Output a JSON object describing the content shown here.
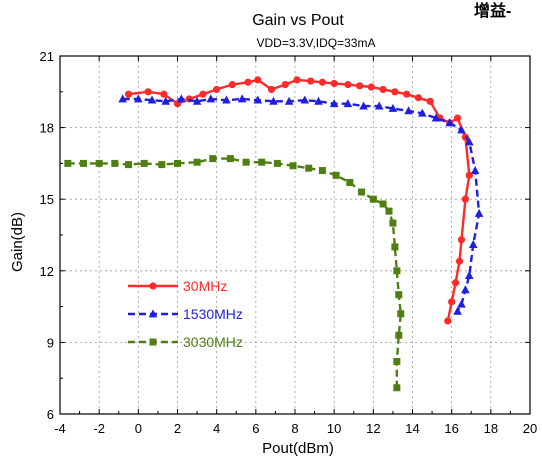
{
  "corner_text": "增益-",
  "chart_data": {
    "type": "line",
    "title": "Gain vs Pout",
    "subtitle": "VDD=3.3V,IDQ=33mA",
    "xlabel": "Pout(dBm)",
    "ylabel": "Gain(dB)",
    "xlim": [
      -4,
      20
    ],
    "ylim": [
      6,
      21
    ],
    "xticks": [
      -4,
      -2,
      0,
      2,
      4,
      6,
      8,
      10,
      12,
      14,
      16,
      18,
      20
    ],
    "yticks": [
      6,
      9,
      12,
      15,
      18,
      21
    ],
    "grid": true,
    "legend_position": "lower-left",
    "series": [
      {
        "name": "30MHz",
        "color": "#ff2a2a",
        "marker": "circle",
        "x": [
          -0.5,
          0.5,
          1.3,
          2.0,
          2.6,
          3.3,
          4.0,
          4.8,
          5.6,
          6.1,
          6.8,
          7.5,
          8.1,
          8.8,
          9.4,
          10.0,
          10.7,
          11.3,
          11.9,
          12.5,
          13.1,
          13.7,
          14.3,
          14.9,
          15.4,
          15.9,
          16.3,
          16.7,
          16.9,
          16.7,
          16.5,
          16.4,
          16.2,
          16.0,
          15.8
        ],
        "y": [
          19.4,
          19.5,
          19.4,
          19.0,
          19.2,
          19.4,
          19.6,
          19.8,
          19.9,
          20.0,
          19.6,
          19.8,
          20.0,
          19.95,
          19.9,
          19.85,
          19.8,
          19.75,
          19.7,
          19.6,
          19.5,
          19.4,
          19.25,
          19.1,
          18.4,
          18.2,
          18.4,
          17.6,
          16.0,
          15.0,
          13.3,
          12.4,
          11.5,
          10.7,
          9.9
        ]
      },
      {
        "name": "1530MHz",
        "color": "#1f1fe0",
        "marker": "triangle",
        "x": [
          -0.8,
          0.0,
          0.7,
          1.4,
          2.2,
          3.0,
          3.7,
          4.5,
          5.3,
          6.1,
          6.9,
          7.7,
          8.5,
          9.2,
          10.0,
          10.7,
          11.5,
          12.3,
          13.0,
          13.8,
          14.5,
          15.2,
          15.9,
          16.5,
          16.9,
          17.2,
          17.4,
          17.1,
          16.9,
          16.7,
          16.5,
          16.3
        ],
        "y": [
          19.2,
          19.2,
          19.15,
          19.1,
          19.2,
          19.1,
          19.2,
          19.15,
          19.2,
          19.15,
          19.1,
          19.1,
          19.15,
          19.1,
          19.0,
          19.0,
          18.9,
          18.9,
          18.8,
          18.7,
          18.6,
          18.4,
          18.2,
          17.9,
          17.4,
          16.2,
          14.4,
          13.1,
          11.8,
          11.2,
          10.6,
          10.3
        ]
      },
      {
        "name": "3030MHz",
        "color": "#4f7f12",
        "marker": "square",
        "x": [
          -3.6,
          -2.8,
          -2.0,
          -1.2,
          -0.5,
          0.3,
          1.2,
          2.0,
          3.0,
          3.8,
          4.7,
          5.5,
          6.3,
          7.1,
          7.9,
          8.7,
          9.4,
          10.1,
          10.8,
          11.4,
          12.0,
          12.5,
          12.8,
          13.0,
          13.1,
          13.2,
          13.3,
          13.4,
          13.3,
          13.2,
          13.2
        ],
        "y": [
          16.5,
          16.5,
          16.5,
          16.5,
          16.45,
          16.5,
          16.45,
          16.5,
          16.55,
          16.7,
          16.7,
          16.55,
          16.55,
          16.5,
          16.4,
          16.3,
          16.2,
          16.0,
          15.7,
          15.3,
          15.0,
          14.8,
          14.5,
          14.0,
          13.0,
          12.0,
          11.0,
          10.2,
          9.3,
          8.2,
          7.1
        ]
      }
    ]
  }
}
